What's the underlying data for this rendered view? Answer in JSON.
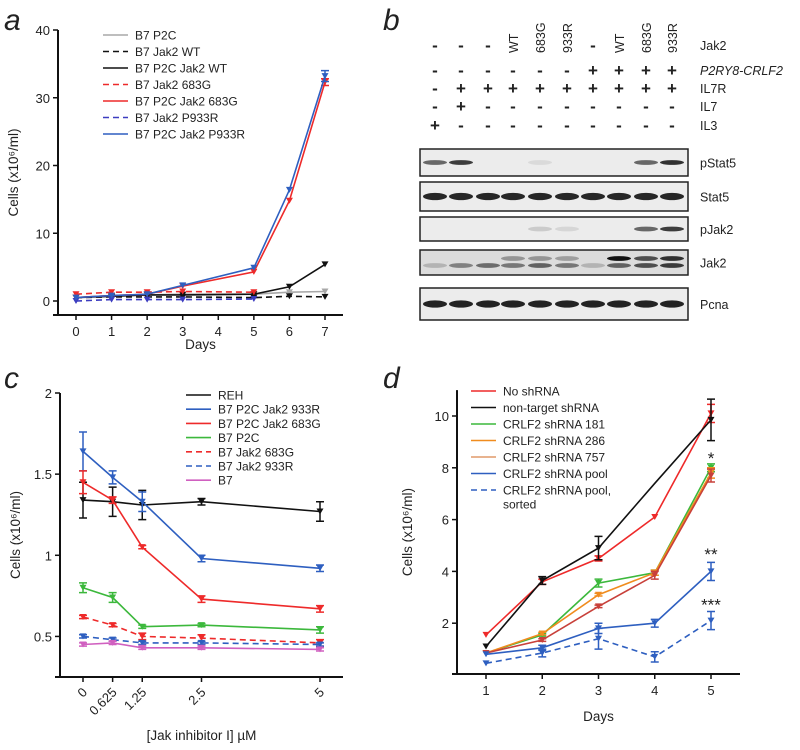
{
  "panel_letters": {
    "a": "a",
    "b": "b",
    "c": "c",
    "d": "d"
  },
  "chart_data": [
    {
      "id": "a",
      "type": "line",
      "xlabel": "Days",
      "ylabel": "Cells (x10⁶/ml)",
      "xticks": [
        0,
        1,
        2,
        3,
        4,
        5,
        6,
        7
      ],
      "yticks": [
        0,
        10,
        20,
        30,
        40
      ],
      "ylim": [
        0,
        40
      ],
      "x": [
        0,
        1,
        2,
        3,
        5,
        6,
        7
      ],
      "series": [
        {
          "name": "B7 P2C",
          "color": "#a8a8a8",
          "dash": false,
          "values": [
            0.5,
            0.8,
            0.9,
            1.0,
            1.0,
            1.3,
            1.4
          ]
        },
        {
          "name": "B7 Jak2 WT",
          "color": "#111111",
          "dash": true,
          "values": [
            0.5,
            0.6,
            0.6,
            0.6,
            0.5,
            0.7,
            0.6
          ]
        },
        {
          "name": "B7 P2C Jak2 WT",
          "color": "#111111",
          "dash": false,
          "values": [
            0.5,
            0.7,
            0.9,
            0.9,
            1.0,
            2.1,
            5.4
          ]
        },
        {
          "name": "B7 Jak2 683G",
          "color": "#ee2a2a",
          "dash": true,
          "values": [
            1.0,
            1.3,
            1.3,
            1.4,
            1.3,
            null,
            null
          ]
        },
        {
          "name": "B7 P2C Jak2 683G",
          "color": "#ee2a2a",
          "dash": false,
          "values": [
            0.5,
            0.8,
            1.0,
            2.2,
            4.3,
            14.8,
            32.3
          ],
          "err": [
            0,
            0,
            0,
            0,
            0,
            0,
            0.5
          ]
        },
        {
          "name": "B7 Jak2 P933R",
          "color": "#3c3cc0",
          "dash": true,
          "values": [
            0.0,
            0.2,
            0.2,
            0.2,
            0.3,
            null,
            null
          ]
        },
        {
          "name": "B7 P2C Jak2 P933R",
          "color": "#2e5fc0",
          "dash": false,
          "values": [
            0.5,
            0.8,
            1.0,
            2.3,
            4.9,
            16.4,
            33.2
          ],
          "err": [
            0,
            0,
            0,
            0,
            0,
            0,
            0.8
          ]
        }
      ]
    },
    {
      "id": "c",
      "type": "line",
      "xlabel": "[Jak inhibitor I] µM",
      "ylabel": "Cells (x10⁶/ml)",
      "xticks": [
        0,
        0.625,
        1.25,
        2.5,
        5
      ],
      "xticklabels": [
        "0",
        "0.625",
        "1.25",
        "2.5",
        "5"
      ],
      "yticks": [
        0.5,
        1,
        1.5,
        2
      ],
      "yticklabels": [
        "0.5",
        "1",
        "1.5",
        "2"
      ],
      "ylim": [
        0.25,
        2
      ],
      "x": [
        0,
        0.625,
        1.25,
        2.5,
        5
      ],
      "series": [
        {
          "name": "REH",
          "color": "#111111",
          "dash": false,
          "values": [
            1.34,
            1.33,
            1.31,
            1.33,
            1.27
          ],
          "err": [
            0.11,
            0.09,
            0.09,
            0.02,
            0.06
          ]
        },
        {
          "name": "B7 P2C Jak2 933R",
          "color": "#2e5fc0",
          "dash": false,
          "values": [
            1.64,
            1.48,
            1.33,
            0.98,
            0.92
          ],
          "err": [
            0.12,
            0.04,
            0.06,
            0.02,
            0.02
          ]
        },
        {
          "name": "B7 P2C Jak2 683G",
          "color": "#ee2a2a",
          "dash": false,
          "values": [
            1.45,
            1.34,
            1.05,
            0.73,
            0.67
          ],
          "err": [
            0.07,
            0.02,
            0.01,
            0.02,
            0.02
          ]
        },
        {
          "name": "B7 P2C",
          "color": "#3cb83c",
          "dash": false,
          "values": [
            0.8,
            0.74,
            0.56,
            0.57,
            0.54
          ],
          "err": [
            0.03,
            0.03,
            0.01,
            0.01,
            0.02
          ]
        },
        {
          "name": "B7 Jak2 683G",
          "color": "#ee2a2a",
          "dash": true,
          "values": [
            0.62,
            0.57,
            0.5,
            0.49,
            0.46
          ],
          "err": [
            0.01,
            0.01,
            0.02,
            0.02,
            0.02
          ]
        },
        {
          "name": "B7 Jak2 933R",
          "color": "#2e5fc0",
          "dash": true,
          "values": [
            0.5,
            0.48,
            0.46,
            0.46,
            0.45
          ],
          "err": [
            0.01,
            0.01,
            0.01,
            0.01,
            0.01
          ]
        },
        {
          "name": "B7",
          "color": "#d060c0",
          "dash": false,
          "values": [
            0.45,
            0.46,
            0.43,
            0.43,
            0.42
          ],
          "err": [
            0.01,
            0.01,
            0.01,
            0.01,
            0.01
          ]
        }
      ]
    },
    {
      "id": "d",
      "type": "line",
      "xlabel": "Days",
      "ylabel": "Cells (x10⁶/ml)",
      "xticks": [
        1,
        2,
        3,
        4,
        5
      ],
      "yticks": [
        2,
        4,
        6,
        8,
        10
      ],
      "ylim": [
        0,
        11
      ],
      "x": [
        1,
        2,
        3,
        4,
        5
      ],
      "series": [
        {
          "name": "No shRNA",
          "color": "#ee2a2a",
          "dash": false,
          "values": [
            1.55,
            3.6,
            4.5,
            6.1,
            10.1
          ],
          "err": [
            0,
            0.1,
            0.1,
            0,
            0.35
          ]
        },
        {
          "name": "non-target shRNA",
          "color": "#111111",
          "dash": false,
          "values": [
            1.1,
            3.65,
            4.9,
            7.4,
            9.85
          ],
          "err": [
            0,
            0.15,
            0.45,
            0,
            0.8
          ],
          "markers": [
            true,
            true,
            true,
            false,
            true
          ]
        },
        {
          "name": "CRLF2 shRNA 181",
          "color": "#3cb83c",
          "dash": false,
          "values": [
            0.85,
            1.55,
            3.55,
            3.95,
            8.0
          ],
          "err": [
            0,
            0.05,
            0.15,
            0.1,
            0.15
          ]
        },
        {
          "name": "CRLF2 shRNA 286",
          "color": "#f08c1e",
          "dash": false,
          "values": [
            0.85,
            1.6,
            3.1,
            3.95,
            7.8
          ],
          "err": [
            0,
            0.05,
            0.05,
            0.1,
            0.2
          ]
        },
        {
          "name": "CRLF2 shRNA 757",
          "color": "#c8403a",
          "legend_color": "#e09a6a",
          "dash": false,
          "values": [
            0.85,
            1.35,
            2.65,
            3.85,
            7.7
          ],
          "err": [
            0,
            0.05,
            0.05,
            0.15,
            0.25
          ]
        },
        {
          "name": "CRLF2 shRNA pool",
          "color": "#2e5fc0",
          "dash": false,
          "values": [
            0.8,
            1.05,
            1.8,
            2.0,
            4.0
          ],
          "err": [
            0,
            0.1,
            0.2,
            0.15,
            0.35
          ]
        },
        {
          "name": "CRLF2 shRNA pool,",
          "name_line2": "sorted",
          "color": "#2e5fc0",
          "dash": true,
          "values": [
            0.45,
            0.85,
            1.4,
            0.7,
            2.1
          ],
          "err": [
            0,
            0.15,
            0.4,
            0.2,
            0.35
          ]
        }
      ],
      "annotations": [
        {
          "text": "*",
          "x": 5,
          "y": 8.3
        },
        {
          "text": "**",
          "x": 5,
          "y": 4.6
        },
        {
          "text": "***",
          "x": 5,
          "y": 2.65
        }
      ]
    },
    {
      "id": "b",
      "type": "table",
      "conditions": [
        {
          "label": "Jak2",
          "italic": false,
          "values": [
            "-",
            "-",
            "-",
            "WT",
            "683G",
            "933R",
            "-",
            "WT",
            "683G",
            "933R"
          ]
        },
        {
          "label": "P2RY8-CRLF2",
          "italic": true,
          "values": [
            "-",
            "-",
            "-",
            "-",
            "-",
            "-",
            "+",
            "+",
            "+",
            "+"
          ]
        },
        {
          "label": "IL7R",
          "italic": false,
          "values": [
            "-",
            "+",
            "+",
            "+",
            "+",
            "+",
            "+",
            "+",
            "+",
            "+"
          ]
        },
        {
          "label": "IL7",
          "italic": false,
          "values": [
            "-",
            "+",
            "-",
            "-",
            "-",
            "-",
            "-",
            "-",
            "-",
            "-"
          ]
        },
        {
          "label": "IL3",
          "italic": false,
          "values": [
            "+",
            "-",
            "-",
            "-",
            "-",
            "-",
            "-",
            "-",
            "-",
            "-"
          ]
        }
      ],
      "blots": [
        {
          "label": "pStat5",
          "bands": [
            [
              0.6,
              0.8,
              0,
              0,
              0.08,
              0,
              0,
              0,
              0.6,
              0.85
            ]
          ]
        },
        {
          "label": "Stat5",
          "bands": [
            [
              0.9,
              0.9,
              0.9,
              0.9,
              0.9,
              0.9,
              0.9,
              0.9,
              0.9,
              0.9
            ]
          ]
        },
        {
          "label": "pJak2",
          "bands": [
            [
              0,
              0,
              0,
              0,
              0.15,
              0.1,
              0,
              0,
              0.6,
              0.8
            ]
          ]
        },
        {
          "label": "Jak2",
          "bands": [
            [
              0.2,
              0.45,
              0.55,
              0.5,
              0.6,
              0.5,
              0.2,
              0.6,
              0.7,
              0.8
            ],
            [
              0,
              0,
              0,
              0.35,
              0.35,
              0.3,
              0,
              1.0,
              0.7,
              0.85
            ]
          ]
        },
        {
          "label": "Pcna",
          "bands": [
            [
              0.92,
              0.92,
              0.92,
              0.92,
              0.92,
              0.92,
              0.92,
              0.92,
              0.92,
              0.92
            ]
          ]
        }
      ]
    }
  ]
}
